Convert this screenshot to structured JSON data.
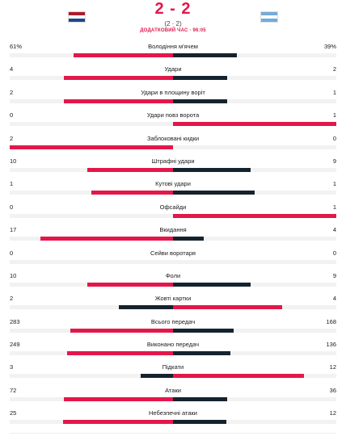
{
  "match": {
    "score": "2 - 2",
    "sub_score": "(2 · 2)",
    "status": "ДОДАТКОВИЙ ЧАС · 96:05",
    "home_flag": {
      "name": "netherlands-flag",
      "colors": [
        "#ae1c28",
        "#ffffff",
        "#21468b"
      ]
    },
    "away_flag": {
      "name": "argentina-flag",
      "colors": [
        "#75aadb",
        "#ffffff",
        "#75aadb"
      ]
    }
  },
  "colors": {
    "accent": "#e3174a",
    "dark": "#15232e",
    "track": "#f2f2f2"
  },
  "stats": [
    {
      "label": "Володіння м'ячем",
      "home": "61%",
      "away": "39%",
      "home_val": 61,
      "away_val": 39,
      "max": 50
    },
    {
      "label": "Удари",
      "home": "4",
      "away": "2",
      "home_val": 4,
      "away_val": 2,
      "max": 6
    },
    {
      "label": "Удари в площину воріт",
      "home": "2",
      "away": "1",
      "home_val": 2,
      "away_val": 1,
      "max": 3
    },
    {
      "label": "Удари повз ворота",
      "home": "0",
      "away": "1",
      "home_val": 0,
      "away_val": 1,
      "max": 1
    },
    {
      "label": "Заблоковані кидки",
      "home": "2",
      "away": "0",
      "home_val": 2,
      "away_val": 0,
      "max": 2
    },
    {
      "label": "Штрафні удари",
      "home": "10",
      "away": "9",
      "home_val": 10,
      "away_val": 9,
      "max": 19
    },
    {
      "label": "Кутові удари",
      "home": "1",
      "away": "1",
      "home_val": 1,
      "away_val": 1,
      "max": 2
    },
    {
      "label": "Офсайди",
      "home": "0",
      "away": "1",
      "home_val": 0,
      "away_val": 1,
      "max": 1
    },
    {
      "label": "Вкидання",
      "home": "17",
      "away": "4",
      "home_val": 17,
      "away_val": 4,
      "max": 21
    },
    {
      "label": "Сейви воротаря",
      "home": "0",
      "away": "0",
      "home_val": 0,
      "away_val": 0,
      "max": 1
    },
    {
      "label": "Фоли",
      "home": "10",
      "away": "9",
      "home_val": 10,
      "away_val": 9,
      "max": 19
    },
    {
      "label": "Жовті картки",
      "home": "2",
      "away": "4",
      "home_val": 2,
      "away_val": 4,
      "max": 6
    },
    {
      "label": "Всього передач",
      "home": "283",
      "away": "168",
      "home_val": 283,
      "away_val": 168,
      "max": 451
    },
    {
      "label": "Виконано передач",
      "home": "249",
      "away": "136",
      "home_val": 249,
      "away_val": 136,
      "max": 385
    },
    {
      "label": "Підкати",
      "home": "3",
      "away": "12",
      "home_val": 3,
      "away_val": 12,
      "max": 15
    },
    {
      "label": "Атаки",
      "home": "72",
      "away": "36",
      "home_val": 72,
      "away_val": 36,
      "max": 108
    },
    {
      "label": "Небезпечні атаки",
      "home": "25",
      "away": "12",
      "home_val": 25,
      "away_val": 12,
      "max": 37
    }
  ]
}
